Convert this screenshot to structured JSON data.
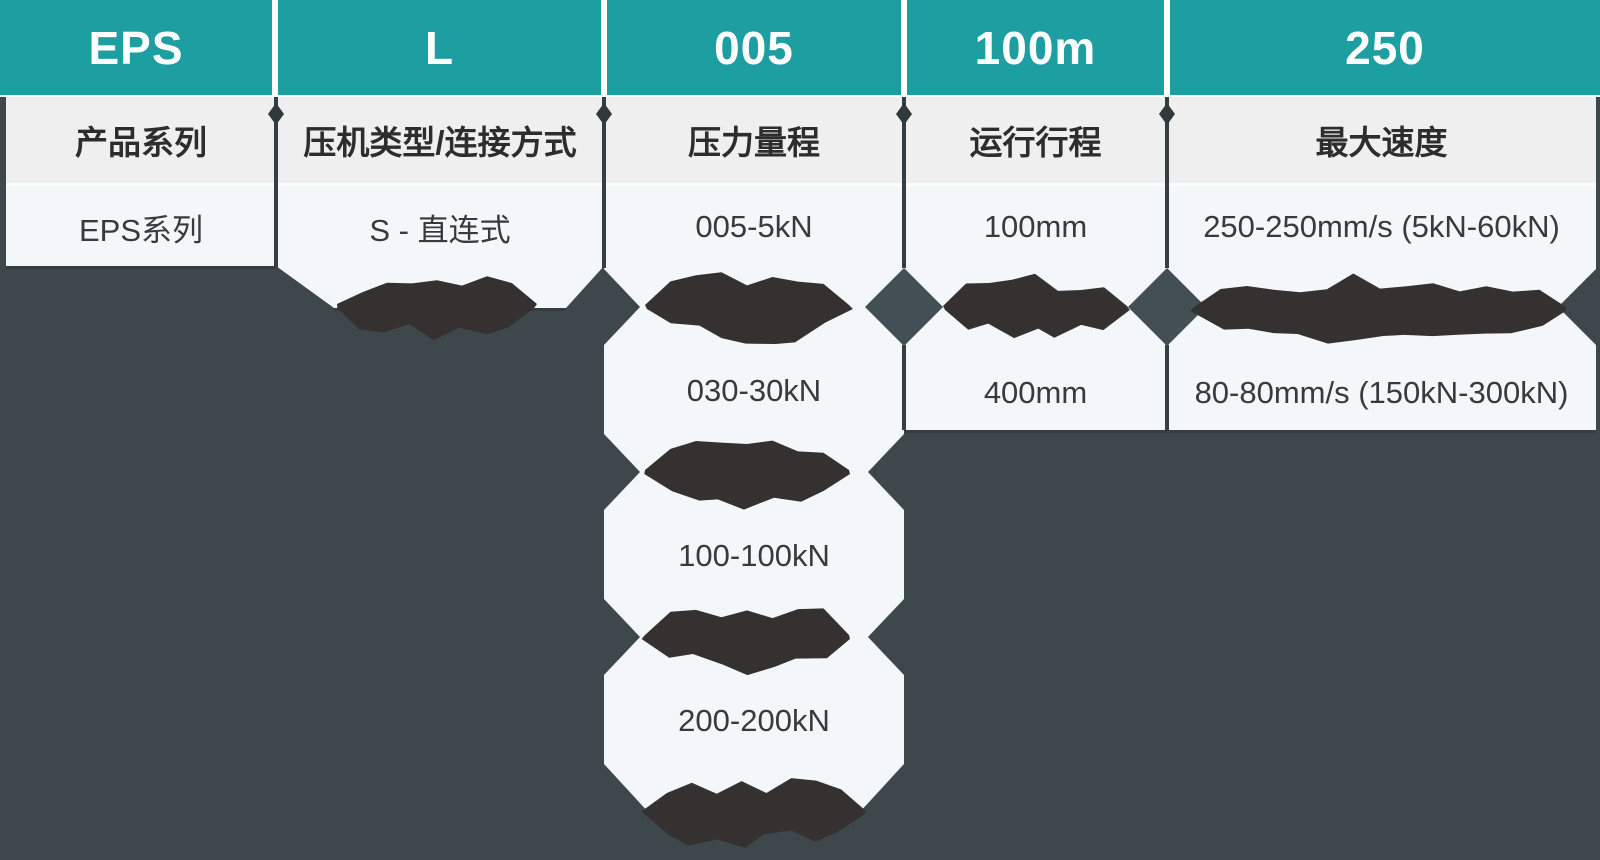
{
  "diagram": {
    "title_hint": "EPS 系列伺服压机型号命名说明",
    "columns": [
      {
        "code": "EPS",
        "label": "产品系列",
        "values": [
          {
            "text": "EPS系列",
            "obscured": false
          }
        ]
      },
      {
        "code": "L",
        "label": "压机类型/连接方式",
        "values": [
          {
            "text": "S - 直连式",
            "obscured": false
          },
          {
            "text": "",
            "obscured": true
          }
        ]
      },
      {
        "code": "005",
        "label": "压力量程",
        "values": [
          {
            "text": "005-5kN",
            "obscured": false
          },
          {
            "text": "",
            "obscured": true
          },
          {
            "text": "030-30kN",
            "obscured": false
          },
          {
            "text": "",
            "obscured": true
          },
          {
            "text": "100-100kN",
            "obscured": false
          },
          {
            "text": "",
            "obscured": true
          },
          {
            "text": "200-200kN",
            "obscured": false
          },
          {
            "text": "",
            "obscured": true
          }
        ]
      },
      {
        "code": "100m",
        "label": "运行行程",
        "values": [
          {
            "text": "100mm",
            "obscured": false
          },
          {
            "text": "",
            "obscured": true
          },
          {
            "text": "400mm",
            "obscured": false
          }
        ]
      },
      {
        "code": "250",
        "label": "最大速度",
        "values": [
          {
            "text": "250-250mm/s (5kN-60kN)",
            "obscured": false
          },
          {
            "text": "",
            "obscured": true
          },
          {
            "text": "80-80mm/s (150kN-300kN)",
            "obscured": false
          }
        ]
      }
    ],
    "colors": {
      "header_teal": "#1d9ea1",
      "header_text": "#ffffff",
      "label_row_bg": "#efefef",
      "value_row_bg": "#f3f7fa",
      "page_bg": "#3e474b",
      "divider": "#353f43",
      "diamond": "#434f54",
      "redaction_blob": "#343130",
      "text_dark": "#2d2d2d"
    }
  }
}
